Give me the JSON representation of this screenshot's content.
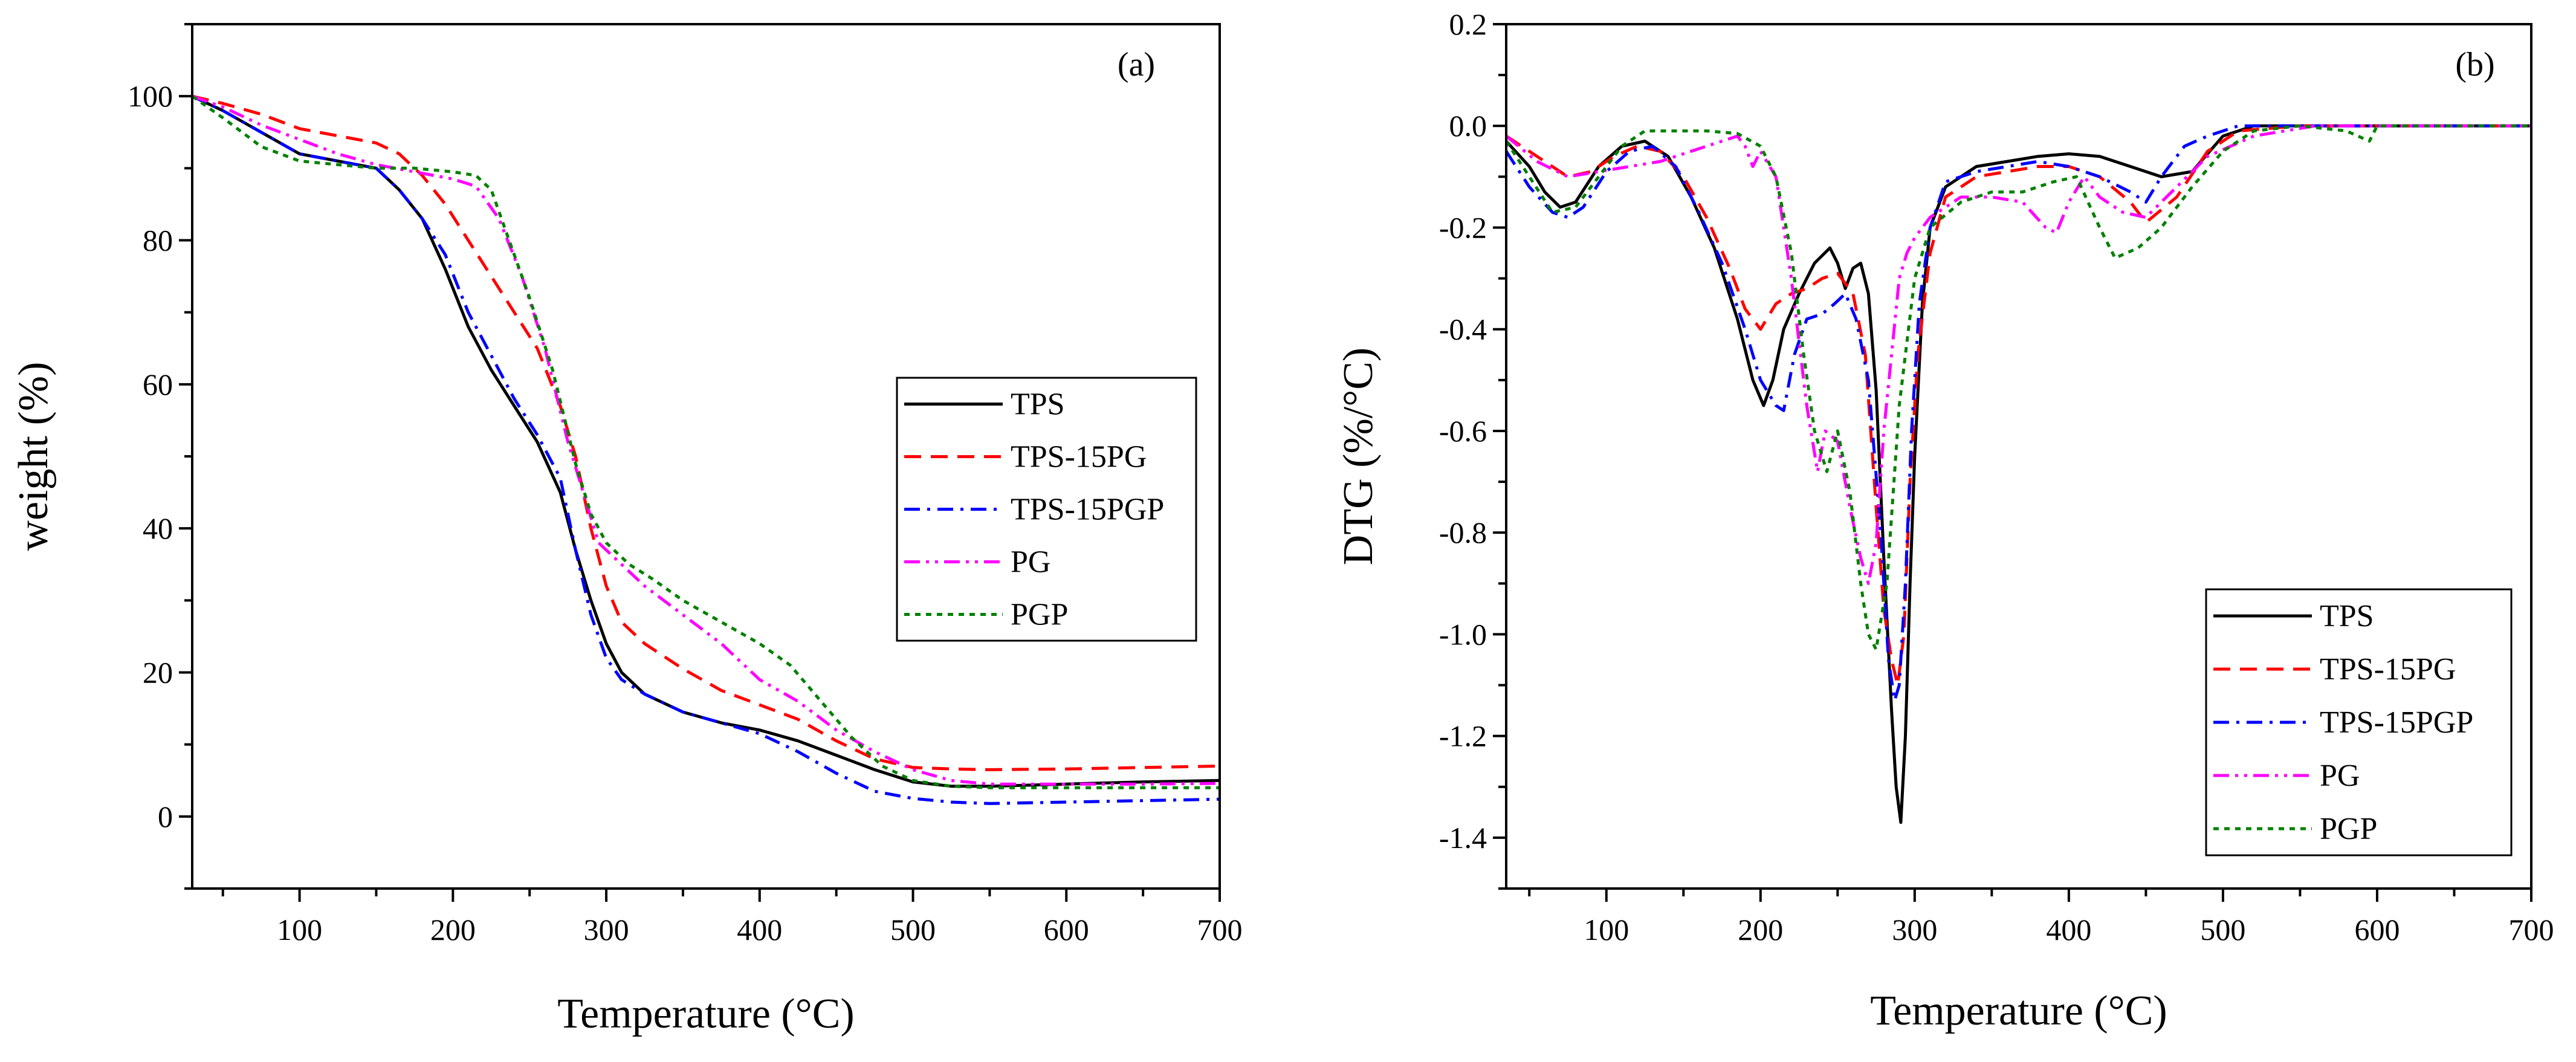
{
  "chart_data": [
    {
      "type": "line",
      "panel_label": "(a)",
      "title": "",
      "xlabel": "Temperature (°C)",
      "ylabel": "weight (%)",
      "xlim": [
        30,
        700
      ],
      "ylim": [
        -10,
        110
      ],
      "xticks": [
        100,
        200,
        300,
        400,
        500,
        600,
        700
      ],
      "yticks": [
        0,
        20,
        40,
        60,
        80,
        100
      ],
      "grid": false,
      "legend_position": "center-right",
      "series": [
        {
          "name": "TPS",
          "color": "#000000",
          "dash": "solid",
          "x": [
            30,
            50,
            75,
            100,
            125,
            150,
            165,
            180,
            195,
            210,
            225,
            240,
            255,
            270,
            280,
            290,
            300,
            310,
            325,
            350,
            375,
            400,
            425,
            450,
            475,
            500,
            525,
            550,
            600,
            650,
            700
          ],
          "y": [
            100,
            98,
            95,
            92,
            91,
            90,
            87,
            83,
            76,
            68,
            62,
            57,
            52,
            45,
            37,
            30,
            24,
            20,
            17,
            14.5,
            13,
            12,
            10.5,
            8.5,
            6.5,
            4.8,
            4.2,
            4.2,
            4.5,
            4.8,
            5.0
          ]
        },
        {
          "name": "TPS-15PG",
          "color": "#ff0000",
          "dash": "dashed",
          "x": [
            30,
            50,
            75,
            100,
            125,
            150,
            165,
            180,
            195,
            210,
            225,
            240,
            255,
            270,
            280,
            290,
            300,
            310,
            325,
            350,
            375,
            400,
            425,
            450,
            475,
            500,
            525,
            550,
            600,
            650,
            700
          ],
          "y": [
            100,
            99,
            97.5,
            95.5,
            94.5,
            93.5,
            92,
            89,
            85,
            80,
            75,
            70,
            65,
            57,
            50,
            40,
            32,
            27,
            24,
            20.5,
            17.5,
            15.5,
            13.5,
            10.5,
            8,
            6.8,
            6.6,
            6.5,
            6.6,
            6.8,
            7.0
          ]
        },
        {
          "name": "TPS-15PGP",
          "color": "#0000ff",
          "dash": "dashdot",
          "x": [
            30,
            50,
            75,
            100,
            125,
            150,
            165,
            180,
            195,
            210,
            225,
            240,
            255,
            270,
            280,
            290,
            300,
            310,
            325,
            350,
            375,
            400,
            425,
            450,
            475,
            500,
            525,
            550,
            600,
            650,
            700
          ],
          "y": [
            100,
            98,
            95,
            92,
            91,
            90,
            87,
            83,
            78,
            70,
            64,
            58,
            53,
            47,
            37,
            28,
            22,
            19,
            17,
            14.5,
            13,
            11.5,
            9,
            6,
            3.5,
            2.5,
            2,
            1.8,
            2,
            2.2,
            2.4
          ]
        },
        {
          "name": "PG",
          "color": "#ff00ff",
          "dash": "dashdotdot",
          "x": [
            30,
            50,
            75,
            100,
            125,
            150,
            175,
            200,
            215,
            230,
            245,
            260,
            275,
            285,
            295,
            310,
            325,
            350,
            375,
            400,
            425,
            450,
            475,
            500,
            525,
            550,
            600,
            650,
            700
          ],
          "y": [
            100,
            98.5,
            96,
            94,
            92,
            90.5,
            89.5,
            88.5,
            87.5,
            83,
            75,
            65,
            52,
            45,
            38,
            35,
            32,
            28,
            24,
            19,
            16,
            12,
            9,
            6.5,
            5,
            4.5,
            4.5,
            4.5,
            4.6
          ]
        },
        {
          "name": "PGP",
          "color": "#008000",
          "dash": "dotted",
          "x": [
            30,
            50,
            75,
            100,
            125,
            150,
            175,
            200,
            215,
            225,
            235,
            250,
            265,
            280,
            290,
            300,
            315,
            330,
            350,
            375,
            400,
            420,
            440,
            460,
            480,
            500,
            525,
            550,
            600,
            650,
            700
          ],
          "y": [
            100,
            97,
            93,
            91,
            90.5,
            90,
            90,
            89.5,
            89,
            87,
            81,
            72,
            62,
            49,
            42,
            38,
            35,
            33,
            30,
            27,
            24,
            21,
            16,
            11,
            7,
            5,
            4.2,
            4,
            4,
            4,
            4
          ]
        }
      ]
    },
    {
      "type": "line",
      "panel_label": "(b)",
      "title": "",
      "xlabel": "Temperature (°C)",
      "ylabel": "DTG (%/°C)",
      "xlim": [
        35,
        700
      ],
      "ylim": [
        -1.5,
        0.2
      ],
      "xticks": [
        100,
        200,
        300,
        400,
        500,
        600,
        700
      ],
      "yticks": [
        0.2,
        0.0,
        -0.2,
        -0.4,
        -0.6,
        -0.8,
        -1.0,
        -1.2,
        -1.4
      ],
      "ytick_labels": [
        "0.2",
        "0.0",
        "-0.2",
        "-0.4",
        "-0.6",
        "-0.8",
        "-1.0",
        "-1.2",
        "-1.4"
      ],
      "grid": false,
      "legend_position": "bottom-right",
      "series": [
        {
          "name": "TPS",
          "color": "#000000",
          "dash": "solid",
          "x": [
            35,
            50,
            60,
            70,
            80,
            95,
            110,
            125,
            140,
            155,
            170,
            185,
            195,
            202,
            208,
            215,
            225,
            235,
            245,
            250,
            255,
            260,
            265,
            270,
            275,
            280,
            285,
            288,
            291,
            294,
            297,
            300,
            305,
            310,
            320,
            340,
            360,
            380,
            400,
            420,
            440,
            460,
            480,
            500,
            520,
            550,
            600,
            650,
            700
          ],
          "y": [
            -0.03,
            -0.08,
            -0.13,
            -0.16,
            -0.15,
            -0.08,
            -0.04,
            -0.03,
            -0.06,
            -0.14,
            -0.24,
            -0.38,
            -0.5,
            -0.55,
            -0.5,
            -0.4,
            -0.33,
            -0.27,
            -0.24,
            -0.27,
            -0.32,
            -0.28,
            -0.27,
            -0.33,
            -0.52,
            -0.85,
            -1.15,
            -1.3,
            -1.37,
            -1.2,
            -0.9,
            -0.65,
            -0.35,
            -0.2,
            -0.12,
            -0.08,
            -0.07,
            -0.06,
            -0.055,
            -0.06,
            -0.08,
            -0.1,
            -0.09,
            -0.02,
            0.0,
            0.0,
            0.0,
            0.0,
            0.0
          ]
        },
        {
          "name": "TPS-15PG",
          "color": "#ff0000",
          "dash": "dashed",
          "x": [
            35,
            55,
            75,
            90,
            105,
            120,
            135,
            150,
            165,
            180,
            190,
            200,
            210,
            220,
            230,
            240,
            250,
            260,
            268,
            275,
            280,
            285,
            289,
            293,
            297,
            302,
            310,
            320,
            340,
            360,
            380,
            400,
            420,
            440,
            450,
            470,
            490,
            510,
            550,
            600,
            650,
            700
          ],
          "y": [
            -0.02,
            -0.06,
            -0.1,
            -0.09,
            -0.06,
            -0.04,
            -0.05,
            -0.1,
            -0.18,
            -0.28,
            -0.36,
            -0.4,
            -0.35,
            -0.33,
            -0.32,
            -0.3,
            -0.29,
            -0.33,
            -0.45,
            -0.75,
            -0.95,
            -1.05,
            -1.1,
            -1.0,
            -0.7,
            -0.45,
            -0.25,
            -0.14,
            -0.1,
            -0.09,
            -0.08,
            -0.08,
            -0.1,
            -0.15,
            -0.19,
            -0.14,
            -0.05,
            -0.01,
            0.0,
            0.0,
            0.0,
            0.0
          ]
        },
        {
          "name": "TPS-15PGP",
          "color": "#0000ff",
          "dash": "dashdot",
          "x": [
            35,
            50,
            65,
            75,
            85,
            100,
            115,
            130,
            145,
            160,
            175,
            190,
            200,
            210,
            215,
            222,
            230,
            240,
            248,
            255,
            262,
            270,
            278,
            283,
            287,
            290,
            294,
            298,
            303,
            310,
            320,
            340,
            360,
            380,
            400,
            420,
            440,
            450,
            460,
            475,
            490,
            510,
            550,
            600,
            650,
            700
          ],
          "y": [
            -0.05,
            -0.12,
            -0.17,
            -0.18,
            -0.16,
            -0.09,
            -0.05,
            -0.04,
            -0.08,
            -0.17,
            -0.27,
            -0.4,
            -0.5,
            -0.55,
            -0.56,
            -0.45,
            -0.38,
            -0.37,
            -0.35,
            -0.33,
            -0.38,
            -0.5,
            -0.8,
            -1.05,
            -1.13,
            -1.1,
            -0.9,
            -0.6,
            -0.35,
            -0.2,
            -0.11,
            -0.09,
            -0.08,
            -0.07,
            -0.08,
            -0.1,
            -0.13,
            -0.15,
            -0.1,
            -0.04,
            -0.02,
            0.0,
            0.0,
            0.0,
            0.0,
            0.0
          ]
        },
        {
          "name": "PG",
          "color": "#ff00ff",
          "dash": "dashdotdot",
          "x": [
            35,
            55,
            75,
            95,
            115,
            135,
            155,
            175,
            185,
            190,
            195,
            200,
            210,
            220,
            230,
            237,
            242,
            250,
            258,
            265,
            270,
            275,
            280,
            285,
            290,
            295,
            300,
            310,
            330,
            350,
            370,
            385,
            392,
            400,
            410,
            420,
            435,
            450,
            470,
            490,
            520,
            560,
            600,
            650,
            700
          ],
          "y": [
            -0.02,
            -0.07,
            -0.1,
            -0.09,
            -0.08,
            -0.07,
            -0.05,
            -0.03,
            -0.02,
            -0.04,
            -0.08,
            -0.05,
            -0.1,
            -0.3,
            -0.55,
            -0.68,
            -0.6,
            -0.62,
            -0.75,
            -0.85,
            -0.9,
            -0.82,
            -0.6,
            -0.45,
            -0.3,
            -0.25,
            -0.22,
            -0.18,
            -0.14,
            -0.14,
            -0.15,
            -0.2,
            -0.21,
            -0.15,
            -0.1,
            -0.14,
            -0.17,
            -0.18,
            -0.12,
            -0.06,
            -0.02,
            0.0,
            0.0,
            0.0,
            0.0
          ]
        },
        {
          "name": "PGP",
          "color": "#008000",
          "dash": "dotted",
          "x": [
            35,
            50,
            65,
            80,
            95,
            110,
            125,
            145,
            165,
            185,
            200,
            210,
            220,
            228,
            235,
            243,
            250,
            258,
            265,
            270,
            275,
            282,
            290,
            300,
            310,
            330,
            350,
            370,
            390,
            405,
            420,
            430,
            445,
            460,
            480,
            500,
            520,
            550,
            580,
            595,
            600,
            650,
            700
          ],
          "y": [
            -0.03,
            -0.1,
            -0.17,
            -0.16,
            -0.1,
            -0.04,
            -0.01,
            -0.01,
            -0.01,
            -0.015,
            -0.04,
            -0.1,
            -0.25,
            -0.45,
            -0.6,
            -0.68,
            -0.6,
            -0.72,
            -0.9,
            -1.0,
            -1.03,
            -0.9,
            -0.55,
            -0.3,
            -0.2,
            -0.15,
            -0.13,
            -0.13,
            -0.11,
            -0.1,
            -0.2,
            -0.26,
            -0.24,
            -0.2,
            -0.12,
            -0.05,
            -0.01,
            0.0,
            -0.01,
            -0.03,
            0.0,
            0.0,
            0.0
          ]
        }
      ]
    }
  ]
}
